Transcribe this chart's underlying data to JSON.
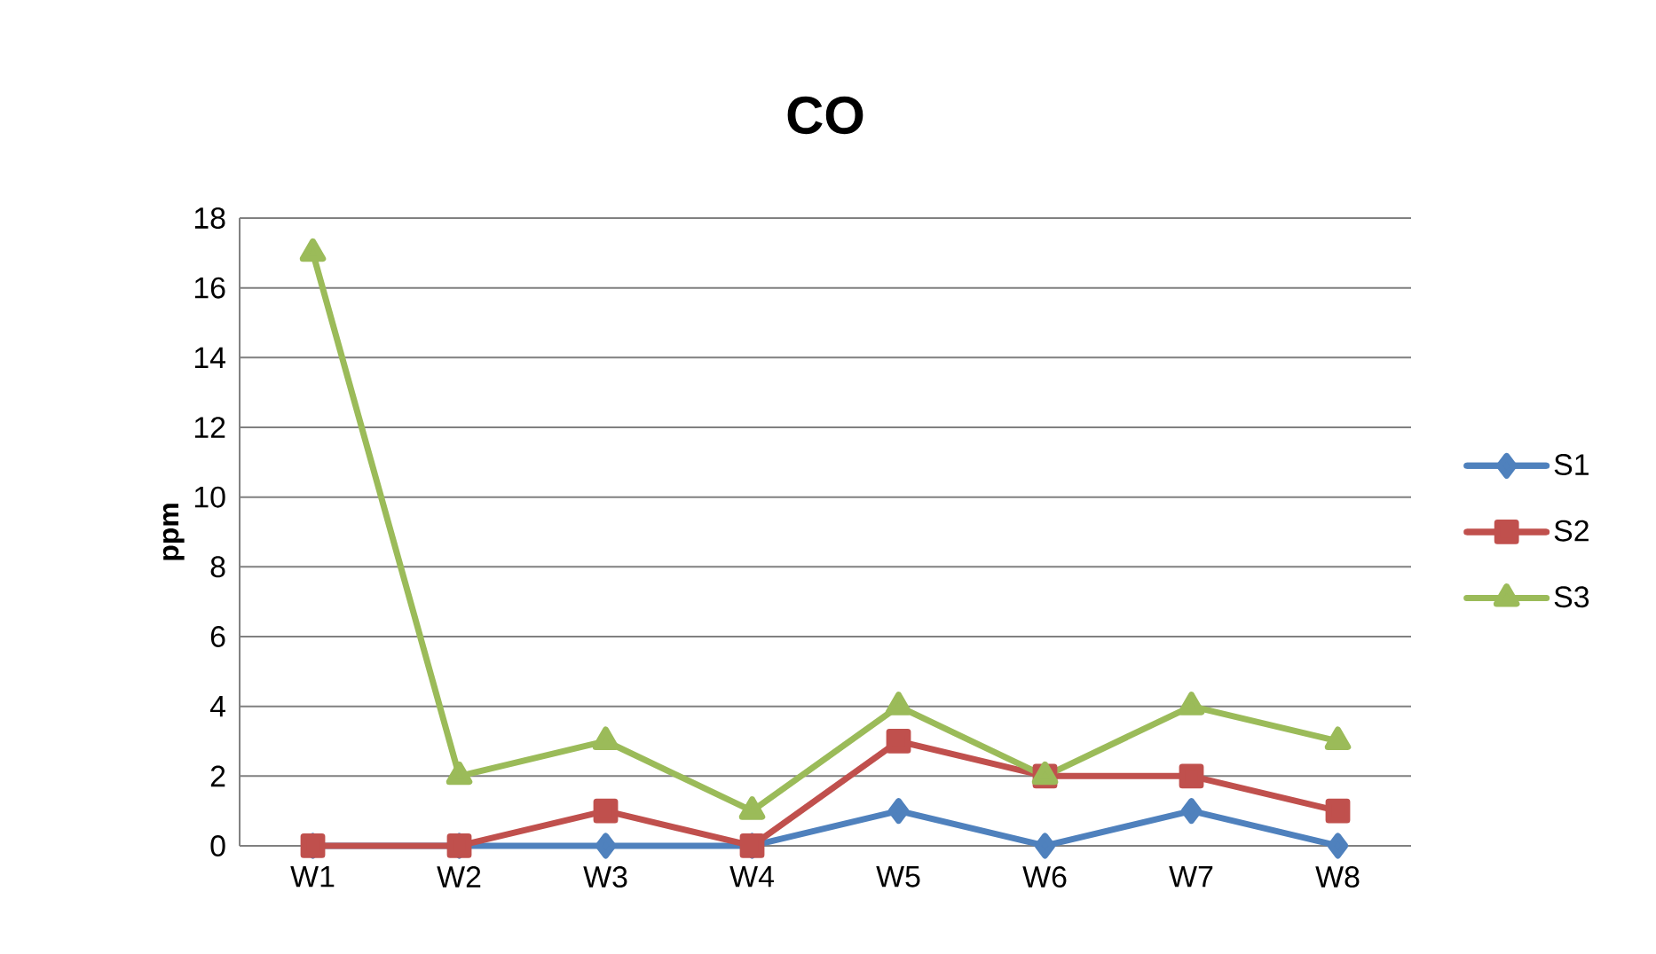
{
  "chart_data": {
    "type": "line",
    "title": "CO",
    "ylabel": "ppm",
    "categories": [
      "W1",
      "W2",
      "W3",
      "W4",
      "W5",
      "W6",
      "W7",
      "W8"
    ],
    "series": [
      {
        "name": "S1",
        "color": "#4f81bd",
        "marker": "diamond",
        "values": [
          0,
          0,
          0,
          0,
          1,
          0,
          1,
          0
        ]
      },
      {
        "name": "S2",
        "color": "#c0504d",
        "marker": "square",
        "values": [
          0,
          0,
          1,
          0,
          3,
          2,
          2,
          1
        ]
      },
      {
        "name": "S3",
        "color": "#9bbb59",
        "marker": "triangle",
        "values": [
          17,
          2,
          3,
          1,
          4,
          2,
          4,
          3
        ]
      }
    ],
    "ylim": [
      0,
      18
    ],
    "yticks": [
      0,
      2,
      4,
      6,
      8,
      10,
      12,
      14,
      16,
      18
    ],
    "grid": "y",
    "legend": "right",
    "line_style": "solid"
  }
}
